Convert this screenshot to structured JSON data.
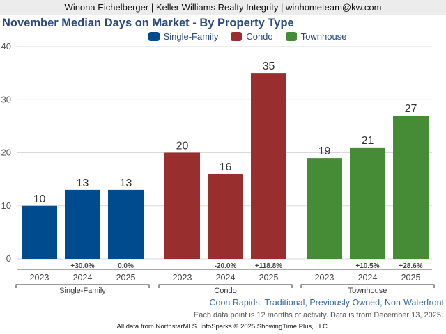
{
  "header": {
    "agent_line": "Winona Eichelberger | Keller Williams Realty Integrity | winhometeam@kw.com"
  },
  "chart_data": {
    "type": "bar",
    "title": "November Median Days on Market - By Property Type",
    "xlabel": "",
    "ylabel": "",
    "ylim": [
      0,
      40
    ],
    "yticks": [
      0,
      10,
      20,
      30,
      40
    ],
    "grid": true,
    "legend_position": "top-center",
    "groups": [
      {
        "name": "Single-Family",
        "color": "#004b8d",
        "categories": [
          "2023",
          "2024",
          "2025"
        ],
        "values": [
          10,
          13,
          13
        ],
        "changes": [
          "",
          "+30.0%",
          "0.0%"
        ]
      },
      {
        "name": "Condo",
        "color": "#992e2f",
        "categories": [
          "2023",
          "2024",
          "2025"
        ],
        "values": [
          20,
          16,
          35
        ],
        "changes": [
          "",
          "-20.0%",
          "+118.8%"
        ]
      },
      {
        "name": "Townhouse",
        "color": "#468c37",
        "categories": [
          "2023",
          "2024",
          "2025"
        ],
        "values": [
          19,
          21,
          27
        ],
        "changes": [
          "",
          "+10.5%",
          "+28.6%"
        ]
      }
    ]
  },
  "footer": {
    "subtitle": "Coon Rapids: Traditional, Previously Owned, Non-Waterfront",
    "note": "Each data point is 12 months of activity. Data is from December 13, 2025.",
    "credit": "All data from NorthstarMLS. InfoSparks © 2025 ShowingTime Plus, LLC."
  }
}
